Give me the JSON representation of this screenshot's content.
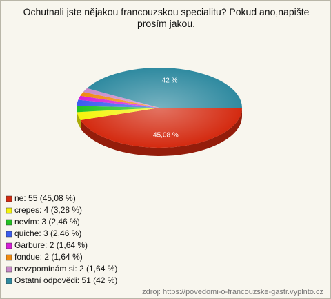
{
  "chart_data": {
    "type": "pie",
    "title": "Ochutnali jste nějakou francouzskou specialitu? Pokud ano,napište prosím jakou.",
    "categories": [
      "ne: 55 (45,08 %)",
      "crepes: 4 (3,28 %)",
      "nevím: 3 (2,46 %)",
      "quiche: 3 (2,46 %)",
      "Garbure: 2 (1,64 %)",
      "fondue: 2 (1,64 %)",
      "nevzpomínám si: 2 (1,64 %)",
      "Ostatní odpovědi: 51 (42 %)"
    ],
    "values": [
      45.08,
      3.28,
      2.46,
      2.46,
      1.64,
      1.64,
      1.64,
      42
    ],
    "value_labels": [
      "45,08 %",
      null,
      null,
      null,
      null,
      null,
      null,
      "42 %"
    ],
    "colors": [
      "#d42a10",
      "#f4f40c",
      "#22c322",
      "#3b5cf0",
      "#d61fd6",
      "#f08a10",
      "#c98ac9",
      "#2f8aa0"
    ],
    "source": "zdroj: https://povedomi-o-francouzske-gastr.vyplnto.cz"
  }
}
